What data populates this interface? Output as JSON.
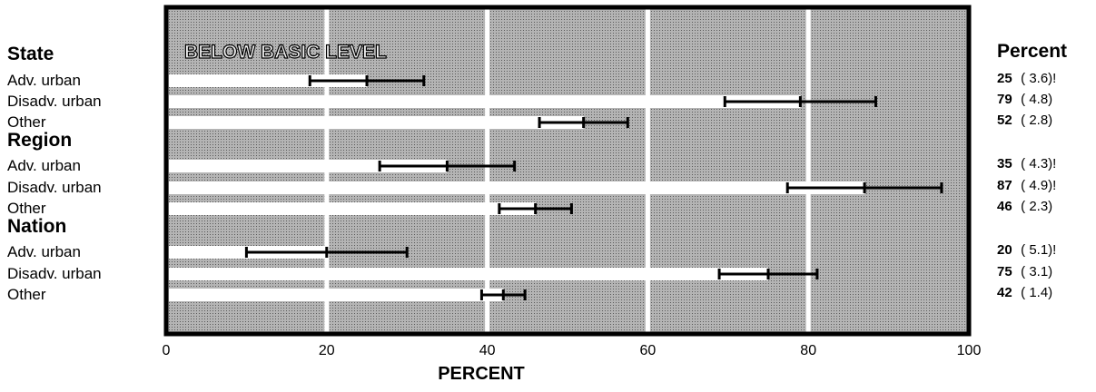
{
  "chart_data": {
    "type": "bar",
    "title": "BELOW BASIC LEVEL",
    "xlabel": "PERCENT",
    "xlim": [
      0,
      100
    ],
    "x_ticks": [
      "0",
      "20",
      "40",
      "60",
      "80",
      "100"
    ],
    "grid": true,
    "background_color": "#a8a8a8",
    "bar_color": "#ffffff",
    "value_header": "Percent",
    "groups": [
      {
        "label": "State",
        "rows": [
          {
            "label": "Adv. urban",
            "value": 25,
            "se": "( 3.6)!",
            "ci_low": 17.9,
            "ci_high": 32.1
          },
          {
            "label": "Disadv. urban",
            "value": 79,
            "se": "( 4.8)",
            "ci_low": 69.6,
            "ci_high": 88.4
          },
          {
            "label": "Other",
            "value": 52,
            "se": "( 2.8)",
            "ci_low": 46.5,
            "ci_high": 57.5
          }
        ]
      },
      {
        "label": "Region",
        "rows": [
          {
            "label": "Adv. urban",
            "value": 35,
            "se": "( 4.3)!",
            "ci_low": 26.6,
            "ci_high": 43.4
          },
          {
            "label": "Disadv. urban",
            "value": 87,
            "se": "( 4.9)!",
            "ci_low": 77.4,
            "ci_high": 96.6
          },
          {
            "label": "Other",
            "value": 46,
            "se": "( 2.3)",
            "ci_low": 41.5,
            "ci_high": 50.5
          }
        ]
      },
      {
        "label": "Nation",
        "rows": [
          {
            "label": "Adv. urban",
            "value": 20,
            "se": "( 5.1)!",
            "ci_low": 10.0,
            "ci_high": 30.0
          },
          {
            "label": "Disadv. urban",
            "value": 75,
            "se": "( 3.1)",
            "ci_low": 68.9,
            "ci_high": 81.1
          },
          {
            "label": "Other",
            "value": 42,
            "se": "( 1.4)",
            "ci_low": 39.3,
            "ci_high": 44.7
          }
        ]
      }
    ]
  }
}
